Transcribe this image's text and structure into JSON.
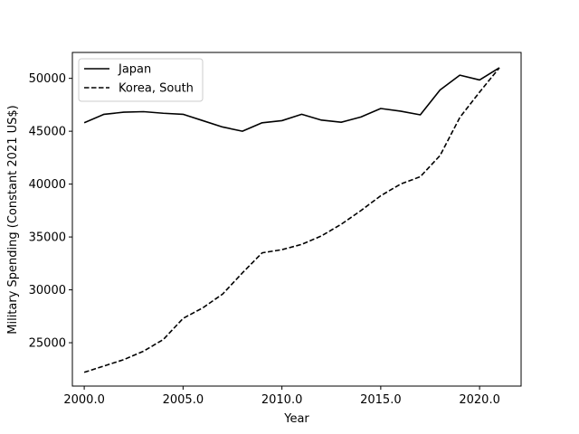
{
  "chart_data": {
    "type": "line",
    "title": "",
    "xlabel": "Year",
    "ylabel": "Military Spending (Constant 2021 US$)",
    "xlim": [
      1999.4,
      2022.1
    ],
    "ylim": [
      20900,
      52450
    ],
    "xticks": [
      2000,
      2005,
      2010,
      2015,
      2020
    ],
    "xtick_labels": [
      "2000.0",
      "2005.0",
      "2010.0",
      "2015.0",
      "2020.0"
    ],
    "yticks": [
      25000,
      30000,
      35000,
      40000,
      45000,
      50000
    ],
    "ytick_labels": [
      "25000",
      "30000",
      "35000",
      "40000",
      "45000",
      "50000"
    ],
    "grid": false,
    "legend_position": "upper-left",
    "x": [
      2000,
      2001,
      2002,
      2003,
      2004,
      2005,
      2006,
      2007,
      2008,
      2009,
      2010,
      2011,
      2012,
      2013,
      2014,
      2015,
      2016,
      2017,
      2018,
      2019,
      2020,
      2021
    ],
    "series": [
      {
        "name": "Japan",
        "style": "solid",
        "color": "#000000",
        "values": [
          45800,
          46600,
          46800,
          46850,
          46700,
          46600,
          46000,
          45400,
          45000,
          45800,
          46000,
          46600,
          46050,
          45850,
          46350,
          47150,
          46900,
          46550,
          48900,
          50300,
          49850,
          51000
        ]
      },
      {
        "name": "Korea, South",
        "style": "dashed",
        "color": "#000000",
        "values": [
          22200,
          22800,
          23400,
          24200,
          25300,
          27300,
          28300,
          29600,
          31600,
          33500,
          33800,
          34300,
          35100,
          36200,
          37500,
          38900,
          40000,
          40700,
          42700,
          46300,
          48700,
          51000
        ]
      }
    ]
  }
}
